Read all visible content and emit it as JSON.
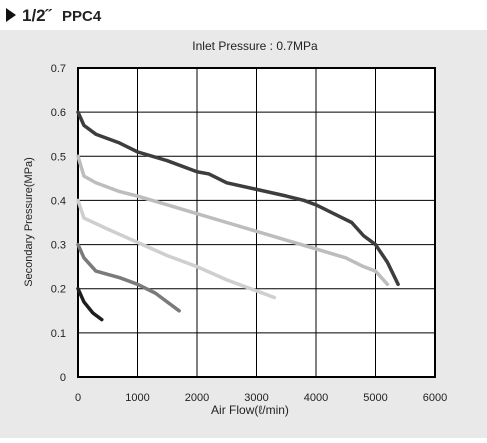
{
  "header": {
    "size": "1/2˝",
    "model": "PPC4"
  },
  "chart_data": {
    "type": "line",
    "title": "Inlet Pressure : 0.7MPa",
    "x_label": "Air Flow(ℓ/min)",
    "y_label": "Secondary Pressure(MPa)",
    "xlim": [
      0,
      6000
    ],
    "xticks": [
      0,
      1000,
      2000,
      3000,
      4000,
      5000,
      6000
    ],
    "ylim": [
      0,
      0.7
    ],
    "yticks": [
      0,
      0.1,
      0.2,
      0.3,
      0.4,
      0.5,
      0.6,
      0.7
    ],
    "grid": true,
    "series": [
      {
        "color": "#3d3d3d",
        "x": [
          0,
          100,
          300,
          700,
          1000,
          1500,
          2000,
          2200,
          2500,
          3000,
          3500,
          3800,
          4000,
          4300,
          4600,
          4800,
          5000,
          5200,
          5380
        ],
        "values": [
          0.6,
          0.57,
          0.55,
          0.53,
          0.51,
          0.49,
          0.465,
          0.46,
          0.44,
          0.425,
          0.41,
          0.4,
          0.39,
          0.37,
          0.35,
          0.32,
          0.3,
          0.26,
          0.21
        ]
      },
      {
        "color": "#bdbdbd",
        "x": [
          0,
          100,
          300,
          700,
          1000,
          1500,
          2000,
          2500,
          3000,
          3500,
          4000,
          4500,
          4800,
          5000,
          5200
        ],
        "values": [
          0.5,
          0.455,
          0.44,
          0.42,
          0.41,
          0.39,
          0.37,
          0.35,
          0.33,
          0.31,
          0.29,
          0.27,
          0.25,
          0.24,
          0.21
        ]
      },
      {
        "color": "#cfcfcf",
        "x": [
          0,
          100,
          500,
          1000,
          1500,
          2000,
          2500,
          3000,
          3300
        ],
        "values": [
          0.4,
          0.36,
          0.335,
          0.305,
          0.275,
          0.25,
          0.22,
          0.195,
          0.18
        ]
      },
      {
        "color": "#7a7a7a",
        "x": [
          0,
          100,
          300,
          700,
          1000,
          1300,
          1700
        ],
        "values": [
          0.3,
          0.27,
          0.24,
          0.225,
          0.21,
          0.19,
          0.15
        ]
      },
      {
        "color": "#1e1e1e",
        "x": [
          0,
          100,
          250,
          400
        ],
        "values": [
          0.2,
          0.17,
          0.145,
          0.13
        ]
      }
    ]
  }
}
